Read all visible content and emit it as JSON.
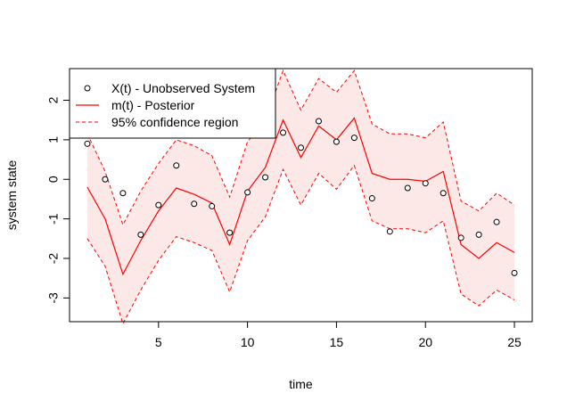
{
  "chart_data": {
    "type": "line",
    "xlabel": "time",
    "ylabel": "system state",
    "xlim": [
      0,
      26
    ],
    "ylim": [
      -3.6,
      2.8
    ],
    "xticks": [
      5,
      10,
      15,
      20,
      25
    ],
    "yticks": [
      -3,
      -2,
      -1,
      0,
      1,
      2
    ],
    "grid": false,
    "legend_position": "top-left",
    "x": [
      1,
      2,
      3,
      4,
      5,
      6,
      7,
      8,
      9,
      10,
      11,
      12,
      13,
      14,
      15,
      16,
      17,
      18,
      19,
      20,
      21,
      22,
      23,
      24,
      25
    ],
    "series": [
      {
        "name": "X(t) - Unobserved System",
        "kind": "points",
        "color": "#000000",
        "values": [
          0.9,
          0.0,
          -0.35,
          -1.4,
          -0.65,
          0.35,
          -0.62,
          -0.68,
          -1.35,
          -0.33,
          0.05,
          1.18,
          0.8,
          1.47,
          0.95,
          1.05,
          -0.48,
          -1.32,
          -0.22,
          -0.1,
          -0.35,
          -1.48,
          -1.4,
          -1.08,
          -2.37
        ]
      },
      {
        "name": "m(t) - Posterior",
        "kind": "line",
        "color": "#ff0000",
        "values": [
          -0.2,
          -1.0,
          -2.4,
          -1.55,
          -0.8,
          -0.22,
          -0.38,
          -0.6,
          -1.65,
          -0.3,
          0.3,
          1.5,
          0.55,
          1.35,
          1.0,
          1.55,
          0.15,
          0.0,
          0.0,
          -0.05,
          0.2,
          -1.65,
          -2.0,
          -1.6,
          -1.85
        ]
      },
      {
        "name": "95% confidence region",
        "kind": "band",
        "color": "#ff0000",
        "fill": "#fde8e8",
        "upper": [
          1.15,
          0.2,
          -1.15,
          -0.3,
          0.4,
          1.0,
          0.85,
          0.6,
          -0.45,
          0.95,
          1.5,
          2.75,
          1.75,
          2.55,
          2.2,
          2.75,
          1.4,
          1.15,
          1.15,
          1.05,
          1.45,
          -0.55,
          -0.8,
          -0.35,
          -0.65
        ],
        "lower": [
          -1.5,
          -2.2,
          -3.65,
          -2.8,
          -2.05,
          -1.45,
          -1.6,
          -1.8,
          -2.85,
          -1.55,
          -0.95,
          0.25,
          -0.65,
          0.15,
          -0.25,
          0.35,
          -1.05,
          -1.25,
          -1.25,
          -1.35,
          -1.05,
          -2.9,
          -3.2,
          -2.8,
          -3.05
        ]
      }
    ]
  }
}
